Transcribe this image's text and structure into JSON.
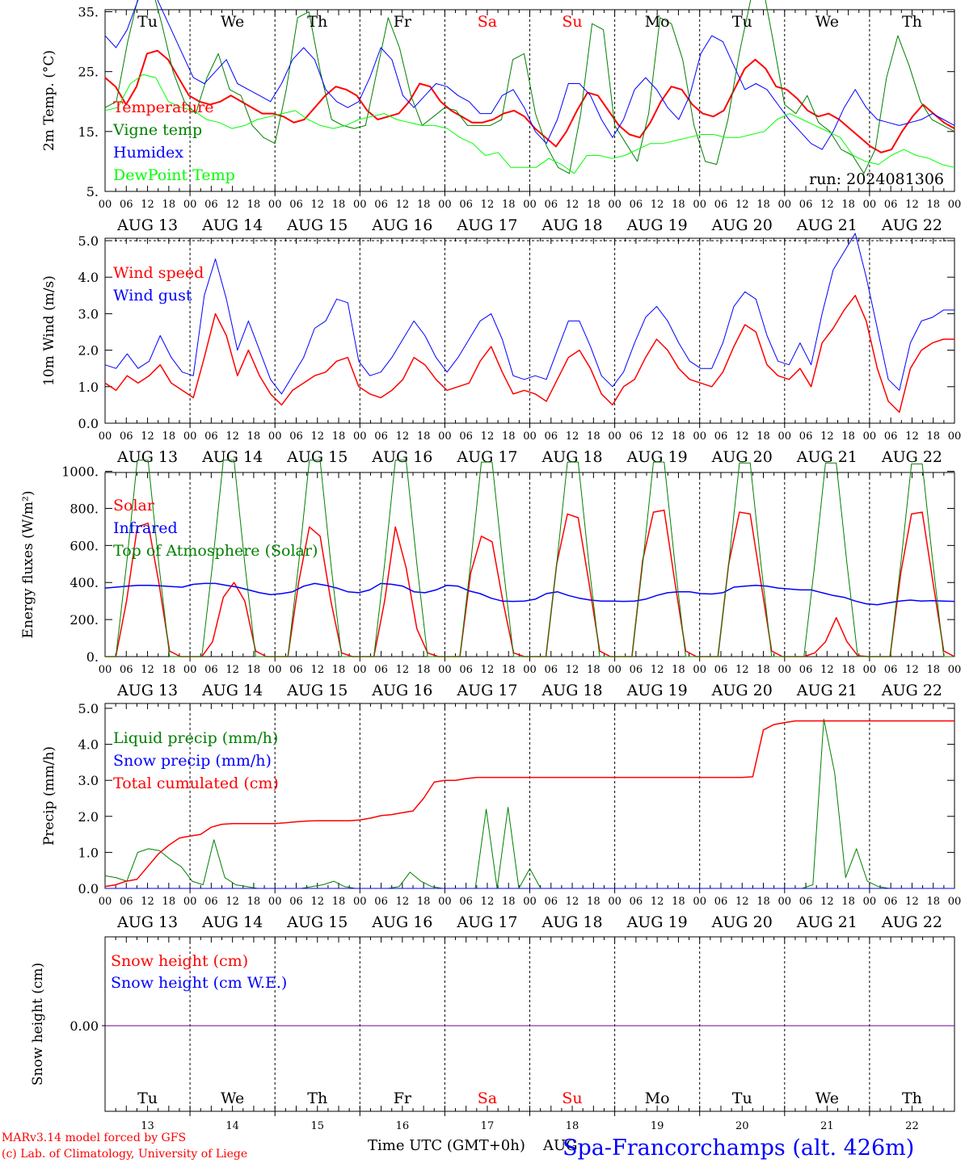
{
  "days": [
    {
      "abbr": "Tu",
      "date": "AUG 13",
      "num": "13",
      "color": "#000000"
    },
    {
      "abbr": "We",
      "date": "AUG 14",
      "num": "14",
      "color": "#000000"
    },
    {
      "abbr": "Th",
      "date": "AUG 15",
      "num": "15",
      "color": "#000000"
    },
    {
      "abbr": "Fr",
      "date": "AUG 16",
      "num": "16",
      "color": "#000000"
    },
    {
      "abbr": "Sa",
      "date": "AUG 17",
      "num": "17",
      "color": "#ff0000"
    },
    {
      "abbr": "Su",
      "date": "AUG 18",
      "num": "18",
      "color": "#ff0000"
    },
    {
      "abbr": "Mo",
      "date": "AUG 19",
      "num": "19",
      "color": "#000000"
    },
    {
      "abbr": "Tu",
      "date": "AUG 20",
      "num": "20",
      "color": "#000000"
    },
    {
      "abbr": "We",
      "date": "AUG 21",
      "num": "21",
      "color": "#000000"
    },
    {
      "abbr": "Th",
      "date": "AUG 22",
      "num": "22",
      "color": "#000000"
    }
  ],
  "hour_ticks": [
    "00",
    "06",
    "12",
    "18"
  ],
  "hour_end_tick": "00",
  "footer": {
    "credit1": "MARv3.14 model forced by GFS",
    "credit2": "(c) Lab. of Climatology, University of Liege",
    "xlabel": "Time UTC (GMT+0h)",
    "month": "AUG",
    "station": "Spa-Francorchamps (alt. 426m)"
  },
  "chart_data": [
    {
      "type": "line",
      "ylabel": "2m Temp. (°C)",
      "ylim": [
        5,
        40
      ],
      "yticks": [
        "5.",
        "15.",
        "25.",
        "35."
      ],
      "annotation": "run: 2024081306",
      "x_unit": "hours from 2024-08-13 00 UTC, 3-hourly",
      "series": [
        {
          "name": "Temperature",
          "color": "#ff0000",
          "width": 2,
          "values": [
            24,
            22.5,
            19.5,
            22.5,
            28,
            28.5,
            27,
            24,
            21,
            20,
            19.5,
            20,
            21,
            20,
            19,
            18,
            18,
            17.5,
            16.5,
            17,
            19,
            21,
            22.5,
            22,
            21,
            18.5,
            17,
            17.5,
            18,
            20,
            23,
            22.5,
            20,
            18.5,
            17.5,
            16.5,
            16.5,
            17,
            18,
            18.5,
            17.5,
            15.5,
            14,
            12.5,
            15,
            18.5,
            21.5,
            21,
            18.5,
            16,
            14.5,
            14,
            16.5,
            20,
            22.5,
            22,
            19.5,
            18,
            17.5,
            18.5,
            22,
            25.5,
            27,
            25.5,
            22.5,
            22,
            20.5,
            18.5,
            17.5,
            18,
            17,
            15.5,
            14,
            12.5,
            11.5,
            12,
            15,
            17.5,
            19.5,
            18,
            16.5,
            15.5
          ]
        },
        {
          "name": "Vigne temp",
          "color": "#008000",
          "width": 1,
          "values": [
            19,
            20,
            30,
            38,
            40,
            33,
            25,
            20,
            18,
            24,
            28,
            22,
            21,
            16,
            14,
            13,
            22,
            34,
            35,
            25,
            17,
            16,
            15.5,
            16,
            25,
            34,
            29,
            21,
            16,
            17.5,
            19,
            18.5,
            16,
            16,
            16,
            17,
            27,
            28,
            18,
            12.5,
            9,
            8,
            18,
            33,
            32,
            16,
            13,
            10,
            18,
            34,
            33,
            27,
            16,
            10,
            9.5,
            17,
            28,
            37,
            40,
            30,
            19.5,
            18,
            21,
            16.5,
            15,
            12,
            11,
            8,
            12,
            24,
            31,
            26,
            20,
            17,
            16,
            15
          ]
        },
        {
          "name": "Humidex",
          "color": "#0000ff",
          "width": 1,
          "values": [
            31,
            29,
            32,
            37,
            40,
            36,
            32,
            28,
            24,
            23,
            25,
            27,
            23,
            22,
            21,
            20,
            23,
            27,
            29,
            27,
            22,
            20,
            19,
            20,
            24,
            29,
            27,
            21,
            19,
            21,
            23,
            22.5,
            21,
            20,
            18,
            18,
            21,
            22,
            19,
            15,
            13,
            17,
            23,
            23,
            21,
            17,
            14,
            17,
            22,
            24,
            22,
            19,
            17,
            21,
            28,
            31,
            30,
            26,
            22,
            23,
            22,
            19.5,
            17,
            15,
            13,
            12,
            15,
            19,
            22,
            19,
            17,
            16.5,
            16,
            16.5,
            17,
            18,
            17,
            16
          ]
        },
        {
          "name": "DewPoint Temp",
          "color": "#00ff00",
          "width": 1,
          "values": [
            18.5,
            19,
            23,
            24.5,
            24,
            20,
            19,
            18.5,
            17,
            16.5,
            15.5,
            16,
            17,
            17.5,
            18,
            18.5,
            17,
            16,
            15.5,
            16,
            17,
            17.5,
            18,
            17,
            16.5,
            16,
            16,
            15.5,
            14,
            13,
            11,
            11.5,
            9,
            9,
            9,
            10.5,
            9.5,
            8,
            11,
            11,
            10.5,
            11,
            12,
            13,
            13,
            13.5,
            14,
            14.5,
            14.5,
            14,
            14,
            14.5,
            15,
            17,
            18,
            17,
            16,
            15,
            14,
            11,
            10,
            9.5,
            11,
            12,
            11,
            10.5,
            9.5,
            9
          ]
        }
      ]
    },
    {
      "type": "line",
      "ylabel": "10m Wind (m/s)",
      "ylim": [
        0,
        5.5
      ],
      "yticks": [
        "0.0",
        "1.0",
        "2.0",
        "3.0",
        "4.0",
        "5.0"
      ],
      "reference_line": 5.0,
      "x_unit": "hours from 2024-08-13 00 UTC, 3-hourly",
      "series": [
        {
          "name": "Wind speed",
          "color": "#ff0000",
          "width": 1.5,
          "values": [
            1.1,
            0.9,
            1.3,
            1.1,
            1.3,
            1.6,
            1.1,
            0.9,
            0.7,
            1.8,
            3.0,
            2.4,
            1.3,
            2.0,
            1.3,
            0.8,
            0.5,
            0.9,
            1.1,
            1.3,
            1.4,
            1.7,
            1.8,
            1.0,
            0.8,
            0.7,
            0.9,
            1.2,
            1.8,
            1.6,
            1.2,
            0.9,
            1.0,
            1.1,
            1.7,
            2.1,
            1.4,
            0.8,
            0.9,
            0.8,
            0.6,
            1.2,
            1.8,
            2.0,
            1.5,
            0.8,
            0.5,
            1.0,
            1.2,
            1.8,
            2.3,
            2.0,
            1.5,
            1.2,
            1.1,
            1.0,
            1.4,
            2.1,
            2.7,
            2.5,
            1.6,
            1.3,
            1.2,
            1.5,
            1.0,
            2.2,
            2.6,
            3.1,
            3.5,
            2.8,
            1.5,
            0.6,
            0.3,
            1.5,
            2.0,
            2.2,
            2.3,
            2.3
          ]
        },
        {
          "name": "Wind gust",
          "color": "#0000ff",
          "width": 1,
          "values": [
            1.6,
            1.5,
            1.9,
            1.5,
            1.7,
            2.4,
            1.8,
            1.4,
            1.3,
            3.5,
            4.5,
            3.4,
            2.0,
            2.8,
            2.0,
            1.2,
            0.8,
            1.3,
            1.8,
            2.6,
            2.8,
            3.4,
            3.3,
            1.7,
            1.3,
            1.4,
            1.8,
            2.3,
            2.8,
            2.4,
            1.8,
            1.4,
            1.8,
            2.3,
            2.8,
            3.0,
            2.3,
            1.3,
            1.2,
            1.3,
            1.2,
            2.0,
            2.8,
            2.8,
            2.1,
            1.3,
            1.0,
            1.4,
            2.2,
            2.9,
            3.2,
            2.8,
            2.2,
            1.7,
            1.5,
            1.5,
            2.2,
            3.2,
            3.6,
            3.4,
            2.4,
            1.7,
            1.6,
            2.2,
            1.6,
            3.0,
            4.2,
            4.7,
            5.2,
            4.0,
            2.6,
            1.2,
            0.9,
            2.2,
            2.8,
            2.9,
            3.1,
            3.1
          ]
        }
      ]
    },
    {
      "type": "line",
      "ylabel": "Energy fluxes (W/m²)",
      "ylim": [
        0,
        1100
      ],
      "yticks": [
        "0.",
        "200.",
        "400.",
        "600.",
        "800.",
        "1000."
      ],
      "x_unit": "hours from 2024-08-13 00 UTC, 3-hourly",
      "series": [
        {
          "name": "Solar",
          "color": "#ff0000",
          "width": 1.5,
          "values": [
            0,
            0,
            300,
            700,
            720,
            400,
            30,
            0,
            0,
            0,
            80,
            320,
            400,
            300,
            30,
            0,
            0,
            0,
            400,
            700,
            650,
            300,
            20,
            0,
            0,
            0,
            300,
            700,
            480,
            150,
            20,
            0,
            0,
            0,
            450,
            650,
            620,
            300,
            20,
            0,
            0,
            0,
            500,
            770,
            750,
            400,
            30,
            0,
            0,
            0,
            520,
            780,
            790,
            400,
            30,
            0,
            0,
            0,
            500,
            780,
            770,
            400,
            30,
            0,
            0,
            0,
            20,
            80,
            210,
            80,
            5,
            0,
            0,
            0,
            450,
            770,
            780,
            400,
            30,
            0
          ]
        },
        {
          "name": "Infrared",
          "color": "#0000ff",
          "width": 1.5,
          "values": [
            370,
            375,
            380,
            385,
            385,
            382,
            378,
            375,
            390,
            395,
            395,
            385,
            375,
            360,
            345,
            335,
            340,
            350,
            380,
            395,
            385,
            370,
            350,
            345,
            360,
            395,
            390,
            380,
            350,
            345,
            360,
            385,
            380,
            355,
            340,
            315,
            300,
            298,
            300,
            310,
            340,
            350,
            330,
            315,
            305,
            300,
            300,
            298,
            300,
            310,
            330,
            345,
            350,
            350,
            340,
            338,
            345,
            375,
            380,
            385,
            380,
            370,
            365,
            360,
            360,
            345,
            330,
            320,
            300,
            285,
            280,
            290,
            300,
            305,
            300,
            302,
            300,
            298
          ]
        },
        {
          "name": "Top of Atmosphere (Solar)",
          "color": "#008000",
          "width": 1,
          "values": [
            0,
            0,
            500,
            1060,
            1060,
            500,
            0,
            0,
            0,
            0,
            500,
            1060,
            1060,
            500,
            0,
            0,
            0,
            0,
            500,
            1060,
            1060,
            500,
            0,
            0,
            0,
            0,
            500,
            1060,
            1060,
            500,
            0,
            0,
            0,
            0,
            500,
            1050,
            1050,
            500,
            0,
            0,
            0,
            0,
            500,
            1050,
            1050,
            500,
            0,
            0,
            0,
            0,
            500,
            1050,
            1050,
            500,
            0,
            0,
            0,
            0,
            500,
            1045,
            1045,
            500,
            0,
            0,
            0,
            0,
            500,
            1045,
            1045,
            500,
            0,
            0,
            0,
            0,
            500,
            1040,
            1040,
            500,
            0,
            0
          ]
        }
      ]
    },
    {
      "type": "line",
      "ylabel": "Precip (mm/h)",
      "ylim": [
        0,
        5
      ],
      "yticks": [
        "0.0",
        "1.0",
        "2.0",
        "3.0",
        "4.0",
        "5.0"
      ],
      "x_unit": "hours from 2024-08-13 00 UTC, 3-hourly",
      "series": [
        {
          "name": "Liquid precip (mm/h)",
          "color": "#008000",
          "width": 1,
          "values": [
            0.35,
            0.3,
            0.2,
            1.0,
            1.1,
            1.05,
            0.8,
            0.6,
            0.2,
            0.1,
            1.35,
            0.3,
            0.1,
            0.05,
            0,
            0,
            0,
            0,
            0,
            0.05,
            0.1,
            0.2,
            0.05,
            0,
            0,
            0,
            0,
            0.05,
            0.45,
            0.2,
            0.05,
            0,
            0,
            0,
            0,
            2.2,
            0,
            2.25,
            0,
            0.55,
            0,
            0,
            0,
            0,
            0,
            0,
            0,
            0,
            0,
            0,
            0,
            0,
            0,
            0,
            0,
            0,
            0,
            0,
            0,
            0,
            0,
            0,
            0,
            0,
            0,
            0.1,
            4.7,
            3.2,
            0.3,
            1.1,
            0.2,
            0.05,
            0,
            0,
            0,
            0,
            0,
            0,
            0
          ]
        },
        {
          "name": "Snow precip (mm/h)",
          "color": "#0000ff",
          "width": 1,
          "values": [
            0
          ]
        },
        {
          "name": "Total cumulated (cm)",
          "color": "#ff0000",
          "width": 1.5,
          "values": [
            0.05,
            0.1,
            0.2,
            0.25,
            0.6,
            0.95,
            1.2,
            1.4,
            1.45,
            1.5,
            1.7,
            1.78,
            1.8,
            1.8,
            1.8,
            1.8,
            1.8,
            1.82,
            1.85,
            1.87,
            1.88,
            1.88,
            1.88,
            1.88,
            1.9,
            1.95,
            2.02,
            2.05,
            2.1,
            2.15,
            2.5,
            2.95,
            3.0,
            3.0,
            3.05,
            3.08,
            3.08,
            3.08,
            3.08,
            3.08,
            3.08,
            3.08,
            3.08,
            3.08,
            3.08,
            3.08,
            3.08,
            3.08,
            3.08,
            3.08,
            3.08,
            3.08,
            3.08,
            3.08,
            3.08,
            3.08,
            3.08,
            3.08,
            3.08,
            3.08,
            3.08,
            3.1,
            4.4,
            4.55,
            4.6,
            4.65,
            4.65,
            4.65,
            4.65,
            4.65,
            4.65,
            4.65,
            4.65,
            4.65,
            4.65,
            4.65,
            4.65,
            4.65,
            4.65,
            4.65,
            4.65
          ]
        }
      ]
    },
    {
      "type": "line",
      "ylabel": "Snow height (cm)",
      "yticks": [
        "0.00"
      ],
      "series": [
        {
          "name": "Snow height (cm)",
          "color": "#ff0000",
          "values": [
            0
          ]
        },
        {
          "name": "Snow height (cm W.E.)",
          "color": "#0000ff",
          "values": [
            0
          ]
        }
      ]
    }
  ]
}
